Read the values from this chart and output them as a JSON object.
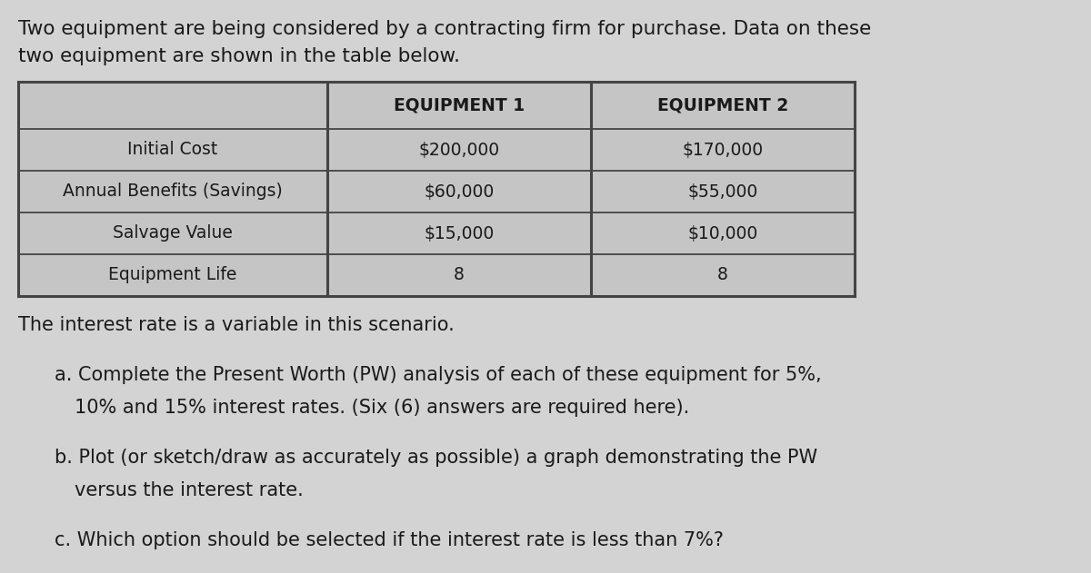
{
  "background_color": "#d3d3d3",
  "intro_text_line1": "Two equipment are being considered by a contracting firm for purchase. Data on these",
  "intro_text_line2": "two equipment are shown in the table below.",
  "table": {
    "col_labels": [
      "",
      "EQUIPMENT 1",
      "EQUIPMENT 2"
    ],
    "rows": [
      [
        "Initial Cost",
        "$200,000",
        "$170,000"
      ],
      [
        "Annual Benefits (Savings)",
        "$60,000",
        "$55,000"
      ],
      [
        "Salvage Value",
        "$15,000",
        "$10,000"
      ],
      [
        "Equipment Life",
        "8",
        "8"
      ]
    ],
    "header_fontsize": 13.5,
    "cell_fontsize": 13.5
  },
  "text_color": "#1a1a1a",
  "table_border_color": "#444444",
  "table_bg_color": "#c5c5c5",
  "font_size_intro": 15.5,
  "font_size_body": 15.0
}
